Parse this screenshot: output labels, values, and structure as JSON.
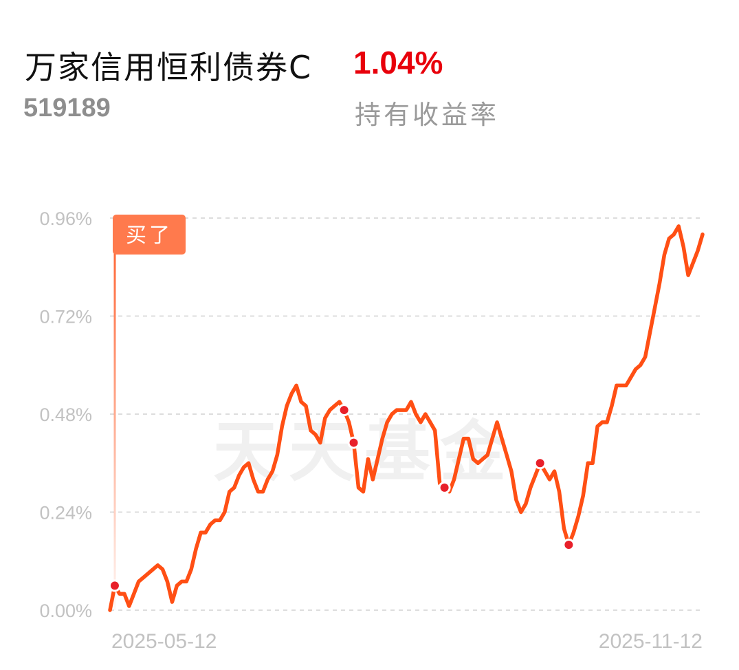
{
  "header": {
    "fund_name": "万家信用恒利债券C",
    "fund_code": "519189",
    "return_value": "1.04%",
    "return_label": "持有收益率"
  },
  "colors": {
    "return_value": "#e8000b",
    "line": "#ff4f14",
    "marker_tag": "#ff7a4d",
    "grid": "#dddddd",
    "axis_text": "#c2c2c2",
    "dot_fill": "#e8202a"
  },
  "chart_data": {
    "type": "line",
    "title": "",
    "xlabel": "",
    "ylabel": "",
    "y_unit": "%",
    "ylim": [
      0,
      0.96
    ],
    "y_ticks": [
      "0.96%",
      "0.72%",
      "0.48%",
      "0.24%",
      "0.00%"
    ],
    "y_tick_values": [
      0.96,
      0.72,
      0.48,
      0.24,
      0.0
    ],
    "x_tick_labels": [
      "2025-05-12",
      "2025-11-12"
    ],
    "x_range": [
      "2025-05-12",
      "2025-11-12"
    ],
    "grid": true,
    "watermark": "天天基金",
    "buy_marker": {
      "label": "买了",
      "date": "2025-05-12"
    },
    "series": [
      {
        "values": [
          0.0,
          0.06,
          0.04,
          0.04,
          0.01,
          0.04,
          0.07,
          0.08,
          0.09,
          0.1,
          0.11,
          0.1,
          0.07,
          0.02,
          0.06,
          0.07,
          0.07,
          0.1,
          0.15,
          0.19,
          0.19,
          0.21,
          0.22,
          0.22,
          0.24,
          0.29,
          0.3,
          0.33,
          0.35,
          0.36,
          0.32,
          0.29,
          0.29,
          0.32,
          0.34,
          0.38,
          0.45,
          0.5,
          0.53,
          0.55,
          0.51,
          0.5,
          0.44,
          0.43,
          0.41,
          0.47,
          0.49,
          0.5,
          0.51,
          0.49,
          0.46,
          0.41,
          0.3,
          0.29,
          0.37,
          0.32,
          0.37,
          0.42,
          0.46,
          0.48,
          0.49,
          0.49,
          0.49,
          0.51,
          0.48,
          0.46,
          0.48,
          0.46,
          0.44,
          0.31,
          0.3,
          0.29,
          0.32,
          0.37,
          0.42,
          0.42,
          0.37,
          0.36,
          0.37,
          0.38,
          0.42,
          0.46,
          0.42,
          0.38,
          0.34,
          0.27,
          0.24,
          0.26,
          0.3,
          0.33,
          0.36,
          0.34,
          0.32,
          0.34,
          0.29,
          0.2,
          0.16,
          0.19,
          0.23,
          0.28,
          0.36,
          0.36,
          0.45,
          0.46,
          0.46,
          0.5,
          0.55,
          0.55,
          0.55,
          0.57,
          0.59,
          0.6,
          0.62,
          0.68,
          0.74,
          0.8,
          0.87,
          0.91,
          0.92,
          0.94,
          0.89,
          0.82,
          0.85,
          0.88,
          0.92
        ],
        "dot_indices": [
          1,
          49,
          51,
          70,
          90,
          96
        ]
      }
    ]
  }
}
